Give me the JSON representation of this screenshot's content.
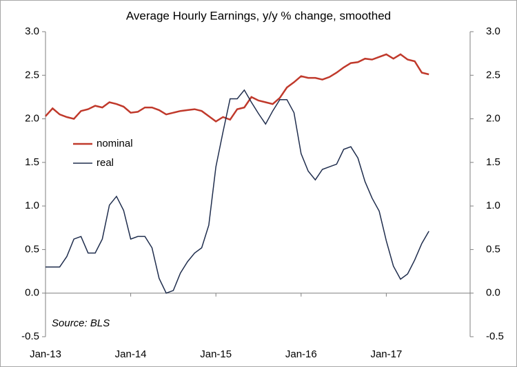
{
  "chart_data": {
    "type": "line",
    "title": "Average Hourly Earnings, y/y % change, smoothed",
    "annotation": "Source: BLS",
    "categories": [
      "Jan-13",
      null,
      null,
      null,
      null,
      null,
      null,
      null,
      null,
      null,
      null,
      null,
      "Jan-14",
      null,
      null,
      null,
      null,
      null,
      null,
      null,
      null,
      null,
      null,
      null,
      "Jan-15",
      null,
      null,
      null,
      null,
      null,
      null,
      null,
      null,
      null,
      null,
      null,
      "Jan-16",
      null,
      null,
      null,
      null,
      null,
      null,
      null,
      null,
      null,
      null,
      null,
      "Jan-17",
      null,
      null,
      null,
      null,
      null,
      null
    ],
    "series": [
      {
        "name": "nominal",
        "color": "#c0392b",
        "values": [
          2.03,
          2.12,
          2.05,
          2.02,
          2.0,
          2.09,
          2.11,
          2.15,
          2.13,
          2.19,
          2.17,
          2.14,
          2.07,
          2.08,
          2.13,
          2.13,
          2.1,
          2.05,
          2.07,
          2.09,
          2.1,
          2.11,
          2.09,
          2.03,
          1.97,
          2.02,
          1.99,
          2.11,
          2.13,
          2.25,
          2.21,
          2.19,
          2.17,
          2.24,
          2.36,
          2.42,
          2.49,
          2.47,
          2.47,
          2.45,
          2.48,
          2.53,
          2.59,
          2.64,
          2.65,
          2.69,
          2.68,
          2.71,
          2.74,
          2.69,
          2.74,
          2.68,
          2.66,
          2.53,
          2.51
        ]
      },
      {
        "name": "real",
        "color": "#1f2d4d",
        "values": [
          0.3,
          0.3,
          0.3,
          0.42,
          0.62,
          0.65,
          0.46,
          0.46,
          0.62,
          1.01,
          1.11,
          0.95,
          0.62,
          0.65,
          0.65,
          0.52,
          0.17,
          0.0,
          0.03,
          0.23,
          0.36,
          0.46,
          0.52,
          0.78,
          1.45,
          1.85,
          2.23,
          2.23,
          2.33,
          2.19,
          2.06,
          1.94,
          2.09,
          2.22,
          2.22,
          2.07,
          1.6,
          1.4,
          1.3,
          1.42,
          1.45,
          1.48,
          1.65,
          1.68,
          1.55,
          1.28,
          1.09,
          0.94,
          0.6,
          0.31,
          0.16,
          0.22,
          0.38,
          0.57,
          0.71
        ]
      }
    ],
    "ylim": [
      -0.5,
      3.0
    ],
    "yticks": [
      {
        "value": -0.5,
        "label": "-0.5"
      },
      {
        "value": 0,
        "label": "0.0"
      },
      0.5,
      {
        "value": 1,
        "label": "1.0"
      },
      1.5,
      {
        "value": 2,
        "label": "2.0"
      },
      2.5,
      {
        "value": 3,
        "label": "3.0"
      }
    ],
    "y2lim": [
      -0.5,
      3.0
    ],
    "y2ticks": [
      {
        "value": -0.5,
        "label": "-0.5"
      },
      {
        "value": 0,
        "label": "0.0"
      },
      0.5,
      {
        "value": 1,
        "label": "1.0"
      },
      1.5,
      {
        "value": 2,
        "label": "2.0"
      },
      2.5,
      {
        "value": 3,
        "label": "3.0"
      }
    ],
    "grid": false,
    "legend": "upper left"
  }
}
